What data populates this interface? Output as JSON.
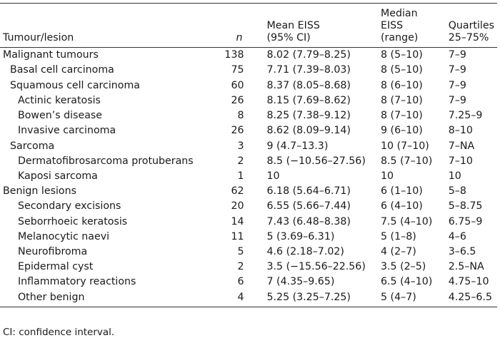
{
  "headers": {
    "tumour": "Tumour/lesion",
    "n": "n",
    "mean_l1": "Mean EISS",
    "mean_l2": "(95% CI)",
    "median_l1": "Median",
    "median_l2": "EISS",
    "median_l3": "(range)",
    "quart_l1": "Quartiles",
    "quart_l2": "25–75%"
  },
  "rows": [
    {
      "level": 0,
      "name": "Malignant tumours",
      "n": "138",
      "mean": "8.02 (7.79–8.25)",
      "median": "8 (5–10)",
      "quartiles": "7–9"
    },
    {
      "level": 1,
      "name": "Basal cell carcinoma",
      "n": "75",
      "mean": "7.71 (7.39–8.03)",
      "median": "8 (5–10)",
      "quartiles": "7–9"
    },
    {
      "level": 1,
      "name": "Squamous cell carcinoma",
      "n": "60",
      "mean": "8.37 (8.05–8.68)",
      "median": "8 (6–10)",
      "quartiles": "7–9"
    },
    {
      "level": 2,
      "name": "Actinic keratosis",
      "n": "26",
      "mean": "8.15 (7.69–8.62)",
      "median": "8 (7–10)",
      "quartiles": "7–9"
    },
    {
      "level": 2,
      "name": "Bowen’s disease",
      "n": "8",
      "mean": "8.25 (7.38–9.12)",
      "median": "8 (7–10)",
      "quartiles": "7.25–9"
    },
    {
      "level": 2,
      "name": "Invasive carcinoma",
      "n": "26",
      "mean": "8.62 (8.09–9.14)",
      "median": "9 (6–10)",
      "quartiles": "8–10"
    },
    {
      "level": 1,
      "name": "Sarcoma",
      "n": "3",
      "mean": "9 (4.7–13.3)",
      "median": "10 (7–10)",
      "quartiles": "7–NA"
    },
    {
      "level": 2,
      "name": "Dermatofibrosarcoma protuberans",
      "n": "2",
      "mean": "8.5 (−10.56–27.56)",
      "median": "8.5 (7–10)",
      "quartiles": "7–10"
    },
    {
      "level": 2,
      "name": "Kaposi sarcoma",
      "n": "1",
      "mean": "10",
      "median": "10",
      "quartiles": "10"
    },
    {
      "level": 0,
      "name": "Benign lesions",
      "n": "62",
      "mean": "6.18 (5.64–6.71)",
      "median": "6 (1–10)",
      "quartiles": "5–8"
    },
    {
      "level": 2,
      "name": "Secondary excisions",
      "n": "20",
      "mean": "6.55 (5.66–7.44)",
      "median": "6 (4–10)",
      "quartiles": "5–8.75"
    },
    {
      "level": 2,
      "name": "Seborrhoeic keratosis",
      "n": "14",
      "mean": "7.43 (6.48–8.38)",
      "median": "7.5 (4–10)",
      "quartiles": "6.75–9"
    },
    {
      "level": 2,
      "name": "Melanocytic naevi",
      "n": "11",
      "mean": "5 (3.69–6.31)",
      "median": "5 (1–8)",
      "quartiles": "4–6"
    },
    {
      "level": 2,
      "name": "Neurofibroma",
      "n": "5",
      "mean": "4.6 (2.18–7.02)",
      "median": "4 (2–7)",
      "quartiles": "3–6.5"
    },
    {
      "level": 2,
      "name": "Epidermal cyst",
      "n": "2",
      "mean": "3.5 (−15.56–22.56)",
      "median": "3.5 (2–5)",
      "quartiles": "2.5–NA"
    },
    {
      "level": 2,
      "name": "Inflammatory reactions",
      "n": "6",
      "mean": "7 (4.35–9.65)",
      "median": "6.5 (4–10)",
      "quartiles": "4.75–10"
    },
    {
      "level": 2,
      "name": "Other benign",
      "n": "4",
      "mean": "5.25 (3.25–7.25)",
      "median": "5 (4–7)",
      "quartiles": "4.25–6.5"
    }
  ],
  "footnote": "CI: confidence interval."
}
